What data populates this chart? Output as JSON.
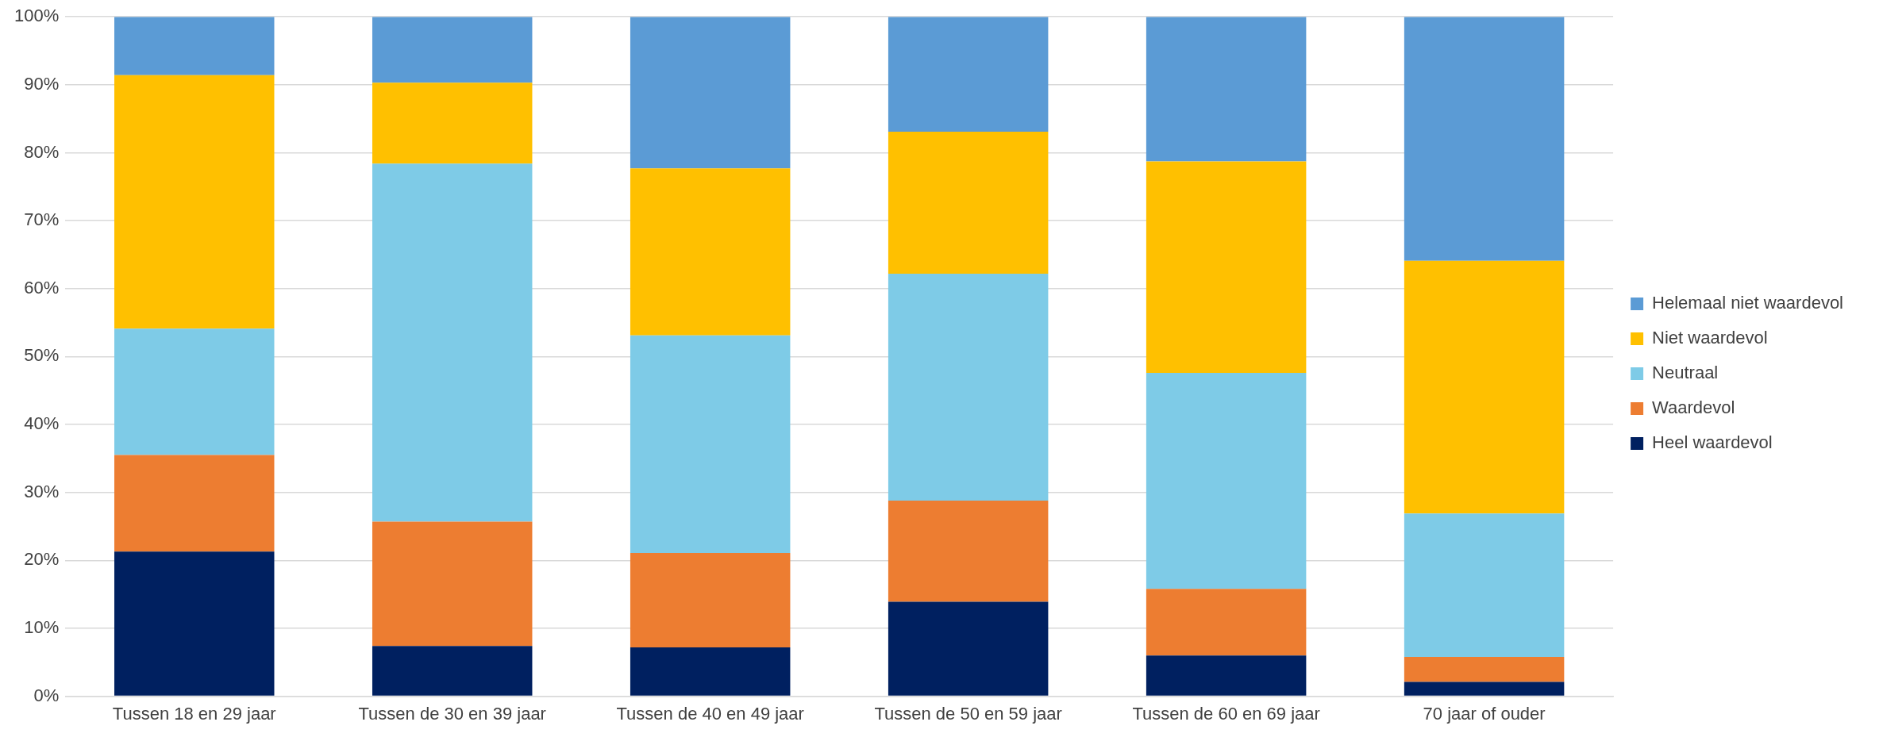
{
  "chart_data": {
    "type": "bar",
    "stacked": true,
    "categories": [
      "Tussen 18 en 29 jaar",
      "Tussen de 30 en 39 jaar",
      "Tussen de 40 en 49 jaar",
      "Tussen de 50 en 59 jaar",
      "Tussen de 60 en 69 jaar",
      "70 jaar of ouder"
    ],
    "series": [
      {
        "name": "Heel waardevol",
        "color": "#002060",
        "values": [
          21.3,
          7.4,
          7.2,
          13.9,
          6.0,
          2.1
        ]
      },
      {
        "name": "Waardevol",
        "color": "#ed7d31",
        "values": [
          14.2,
          18.3,
          13.9,
          14.9,
          9.8,
          3.7
        ]
      },
      {
        "name": "Neutraal",
        "color": "#7ecbe7",
        "values": [
          18.6,
          52.7,
          32.0,
          33.4,
          31.8,
          21.1
        ]
      },
      {
        "name": "Niet waardevol",
        "color": "#ffc000",
        "values": [
          37.3,
          11.9,
          24.6,
          20.9,
          31.1,
          37.2
        ]
      },
      {
        "name": "Helemaal niet waardevol",
        "color": "#5b9bd5",
        "values": [
          8.6,
          9.7,
          22.3,
          16.9,
          21.3,
          35.9
        ]
      }
    ],
    "ylim": [
      0,
      100
    ],
    "yticks": [
      {
        "value": 0,
        "label": "0%"
      },
      {
        "value": 10,
        "label": "10%"
      },
      {
        "value": 20,
        "label": "20%"
      },
      {
        "value": 30,
        "label": "30%"
      },
      {
        "value": 40,
        "label": "40%"
      },
      {
        "value": 50,
        "label": "50%"
      },
      {
        "value": 60,
        "label": "60%"
      },
      {
        "value": 70,
        "label": "70%"
      },
      {
        "value": 80,
        "label": "80%"
      },
      {
        "value": 90,
        "label": "90%"
      },
      {
        "value": 100,
        "label": "100%"
      }
    ],
    "grid": "y",
    "legend": "right"
  }
}
